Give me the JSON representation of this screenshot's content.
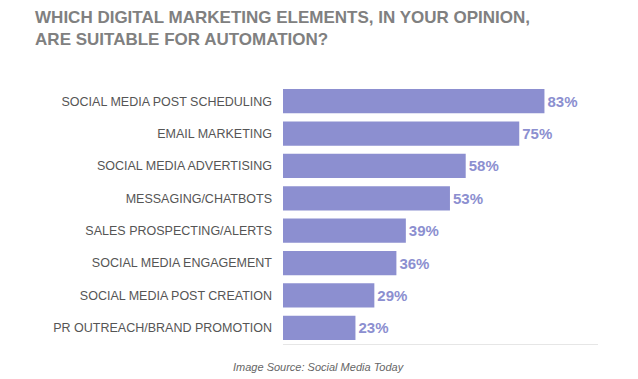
{
  "chart_data": {
    "type": "bar",
    "title": "WHICH DIGITAL MARKETING ELEMENTS, IN YOUR OPINION, ARE SUITABLE FOR AUTOMATION?",
    "orientation": "horizontal",
    "categories": [
      "SOCIAL MEDIA POST SCHEDULING",
      "EMAIL MARKETING",
      "SOCIAL MEDIA ADVERTISING",
      "MESSAGING/CHATBOTS",
      "SALES PROSPECTING/ALERTS",
      "SOCIAL MEDIA ENGAGEMENT",
      "SOCIAL MEDIA POST CREATION",
      "PR OUTREACH/BRAND PROMOTION"
    ],
    "values": [
      83,
      75,
      58,
      53,
      39,
      36,
      29,
      23
    ],
    "value_labels": [
      "83%",
      "75%",
      "58%",
      "53%",
      "39%",
      "36%",
      "29%",
      "23%"
    ],
    "color": "#8c8fd0",
    "xlim": [
      0,
      100
    ],
    "grid": false,
    "data_labels": true,
    "tick_labels": "y",
    "annotations": [
      "Image Source: Social Media Today"
    ]
  }
}
